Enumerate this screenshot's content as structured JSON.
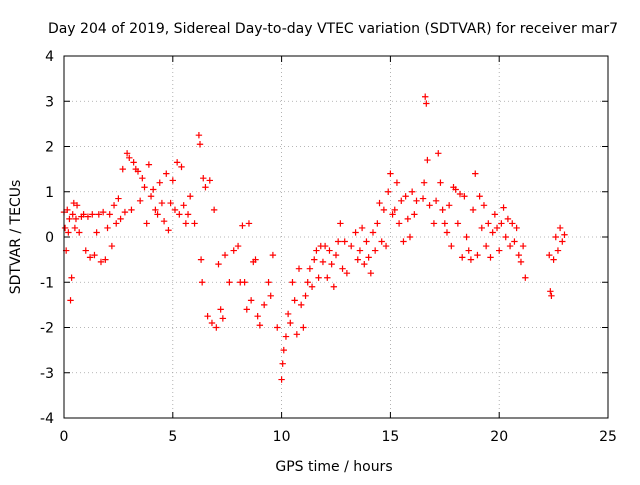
{
  "chart_data": {
    "type": "scatter",
    "title": "Day 204 of 2019, Sidereal Day-to-day VTEC variation (SDTVAR) for receiver mar7",
    "xlabel": "GPS time / hours",
    "ylabel": "SDTVAR / TECUs",
    "xlim": [
      0,
      25
    ],
    "ylim": [
      -4,
      4
    ],
    "xticks": [
      "0",
      "5",
      "10",
      "15",
      "20",
      "25"
    ],
    "yticks": [
      "-4",
      "-3",
      "-2",
      "-1",
      "0",
      "1",
      "2",
      "3",
      "4"
    ],
    "grid": true,
    "marker": "+",
    "color": "#ff0000",
    "series": [
      {
        "name": "SDTVAR",
        "points": [
          [
            0.0,
            0.55
          ],
          [
            0.05,
            0.2
          ],
          [
            0.1,
            -0.3
          ],
          [
            0.15,
            0.6
          ],
          [
            0.2,
            0.1
          ],
          [
            0.25,
            0.4
          ],
          [
            0.3,
            -1.4
          ],
          [
            0.35,
            -0.9
          ],
          [
            0.4,
            0.5
          ],
          [
            0.45,
            0.75
          ],
          [
            0.5,
            0.2
          ],
          [
            0.55,
            0.4
          ],
          [
            0.6,
            0.7
          ],
          [
            0.7,
            0.1
          ],
          [
            0.8,
            0.45
          ],
          [
            0.9,
            0.5
          ],
          [
            1.0,
            -0.3
          ],
          [
            1.1,
            0.45
          ],
          [
            1.2,
            -0.45
          ],
          [
            1.3,
            0.5
          ],
          [
            1.4,
            -0.4
          ],
          [
            1.5,
            0.1
          ],
          [
            1.6,
            0.5
          ],
          [
            1.7,
            -0.55
          ],
          [
            1.8,
            0.55
          ],
          [
            1.9,
            -0.5
          ],
          [
            2.0,
            0.2
          ],
          [
            2.1,
            0.5
          ],
          [
            2.2,
            -0.2
          ],
          [
            2.3,
            0.7
          ],
          [
            2.4,
            0.3
          ],
          [
            2.5,
            0.85
          ],
          [
            2.6,
            0.4
          ],
          [
            2.7,
            1.5
          ],
          [
            2.8,
            0.55
          ],
          [
            2.9,
            1.85
          ],
          [
            3.0,
            1.75
          ],
          [
            3.1,
            0.6
          ],
          [
            3.2,
            1.65
          ],
          [
            3.3,
            1.5
          ],
          [
            3.4,
            1.45
          ],
          [
            3.5,
            0.8
          ],
          [
            3.6,
            1.3
          ],
          [
            3.7,
            1.1
          ],
          [
            3.8,
            0.3
          ],
          [
            3.9,
            1.6
          ],
          [
            4.0,
            0.9
          ],
          [
            4.1,
            1.05
          ],
          [
            4.2,
            0.6
          ],
          [
            4.3,
            0.5
          ],
          [
            4.4,
            1.2
          ],
          [
            4.5,
            0.75
          ],
          [
            4.6,
            0.35
          ],
          [
            4.7,
            1.4
          ],
          [
            4.8,
            0.15
          ],
          [
            4.9,
            0.75
          ],
          [
            5.0,
            1.25
          ],
          [
            5.1,
            0.6
          ],
          [
            5.2,
            1.65
          ],
          [
            5.3,
            0.5
          ],
          [
            5.4,
            1.55
          ],
          [
            5.5,
            0.7
          ],
          [
            5.6,
            0.3
          ],
          [
            5.7,
            0.5
          ],
          [
            5.8,
            0.9
          ],
          [
            6.0,
            0.3
          ],
          [
            6.2,
            2.25
          ],
          [
            6.25,
            2.05
          ],
          [
            6.3,
            -0.5
          ],
          [
            6.35,
            -1.0
          ],
          [
            6.4,
            1.3
          ],
          [
            6.5,
            1.1
          ],
          [
            6.6,
            -1.75
          ],
          [
            6.7,
            1.25
          ],
          [
            6.8,
            -1.9
          ],
          [
            6.9,
            0.6
          ],
          [
            7.0,
            -2.0
          ],
          [
            7.1,
            -0.6
          ],
          [
            7.2,
            -1.6
          ],
          [
            7.3,
            -1.8
          ],
          [
            7.4,
            -0.4
          ],
          [
            7.6,
            -1.0
          ],
          [
            7.8,
            -0.3
          ],
          [
            8.0,
            -0.2
          ],
          [
            8.1,
            -1.0
          ],
          [
            8.2,
            0.25
          ],
          [
            8.3,
            -1.0
          ],
          [
            8.4,
            -1.6
          ],
          [
            8.5,
            0.3
          ],
          [
            8.6,
            -1.4
          ],
          [
            8.7,
            -0.55
          ],
          [
            8.8,
            -0.5
          ],
          [
            8.9,
            -1.75
          ],
          [
            9.0,
            -1.95
          ],
          [
            9.2,
            -1.5
          ],
          [
            9.4,
            -1.0
          ],
          [
            9.5,
            -1.3
          ],
          [
            9.6,
            -0.4
          ],
          [
            9.8,
            -2.0
          ],
          [
            10.0,
            -3.15
          ],
          [
            10.05,
            -2.8
          ],
          [
            10.1,
            -2.5
          ],
          [
            10.2,
            -2.2
          ],
          [
            10.3,
            -1.7
          ],
          [
            10.4,
            -1.9
          ],
          [
            10.5,
            -1.0
          ],
          [
            10.6,
            -1.4
          ],
          [
            10.7,
            -2.15
          ],
          [
            10.8,
            -0.7
          ],
          [
            10.9,
            -1.5
          ],
          [
            11.0,
            -2.0
          ],
          [
            11.1,
            -1.3
          ],
          [
            11.2,
            -1.0
          ],
          [
            11.3,
            -0.7
          ],
          [
            11.4,
            -1.1
          ],
          [
            11.5,
            -0.5
          ],
          [
            11.6,
            -0.3
          ],
          [
            11.7,
            -0.9
          ],
          [
            11.8,
            -0.2
          ],
          [
            11.9,
            -0.55
          ],
          [
            12.0,
            -0.2
          ],
          [
            12.1,
            -0.9
          ],
          [
            12.2,
            -0.3
          ],
          [
            12.3,
            -0.6
          ],
          [
            12.4,
            -1.1
          ],
          [
            12.5,
            -0.4
          ],
          [
            12.6,
            -0.1
          ],
          [
            12.7,
            0.3
          ],
          [
            12.8,
            -0.7
          ],
          [
            12.9,
            -0.1
          ],
          [
            13.0,
            -0.8
          ],
          [
            13.2,
            -0.2
          ],
          [
            13.4,
            0.1
          ],
          [
            13.5,
            -0.5
          ],
          [
            13.6,
            -0.3
          ],
          [
            13.7,
            0.2
          ],
          [
            13.8,
            -0.6
          ],
          [
            13.9,
            -0.1
          ],
          [
            14.0,
            -0.45
          ],
          [
            14.1,
            -0.8
          ],
          [
            14.2,
            0.1
          ],
          [
            14.3,
            -0.3
          ],
          [
            14.4,
            0.3
          ],
          [
            14.5,
            0.75
          ],
          [
            14.6,
            -0.1
          ],
          [
            14.7,
            0.6
          ],
          [
            14.8,
            -0.2
          ],
          [
            14.9,
            1.0
          ],
          [
            15.0,
            1.4
          ],
          [
            15.1,
            0.5
          ],
          [
            15.2,
            0.6
          ],
          [
            15.3,
            1.2
          ],
          [
            15.4,
            0.3
          ],
          [
            15.5,
            0.8
          ],
          [
            15.6,
            -0.1
          ],
          [
            15.7,
            0.9
          ],
          [
            15.8,
            0.4
          ],
          [
            15.9,
            0.0
          ],
          [
            16.0,
            1.0
          ],
          [
            16.1,
            0.5
          ],
          [
            16.2,
            0.8
          ],
          [
            16.5,
            0.85
          ],
          [
            16.55,
            1.2
          ],
          [
            16.6,
            3.1
          ],
          [
            16.65,
            2.95
          ],
          [
            16.7,
            1.7
          ],
          [
            16.8,
            0.7
          ],
          [
            17.0,
            0.3
          ],
          [
            17.1,
            0.8
          ],
          [
            17.2,
            1.85
          ],
          [
            17.3,
            1.2
          ],
          [
            17.4,
            0.6
          ],
          [
            17.5,
            0.3
          ],
          [
            17.6,
            0.1
          ],
          [
            17.7,
            0.7
          ],
          [
            17.8,
            -0.2
          ],
          [
            17.9,
            1.1
          ],
          [
            18.0,
            1.05
          ],
          [
            18.1,
            0.3
          ],
          [
            18.2,
            0.95
          ],
          [
            18.3,
            -0.45
          ],
          [
            18.4,
            0.9
          ],
          [
            18.5,
            0.0
          ],
          [
            18.6,
            -0.3
          ],
          [
            18.7,
            -0.5
          ],
          [
            18.8,
            0.6
          ],
          [
            18.9,
            1.4
          ],
          [
            19.0,
            -0.4
          ],
          [
            19.1,
            0.9
          ],
          [
            19.2,
            0.2
          ],
          [
            19.3,
            0.7
          ],
          [
            19.4,
            -0.2
          ],
          [
            19.5,
            0.3
          ],
          [
            19.6,
            -0.45
          ],
          [
            19.7,
            0.1
          ],
          [
            19.8,
            0.5
          ],
          [
            19.9,
            0.2
          ],
          [
            20.0,
            -0.3
          ],
          [
            20.1,
            0.3
          ],
          [
            20.2,
            0.65
          ],
          [
            20.3,
            0.0
          ],
          [
            20.4,
            0.4
          ],
          [
            20.5,
            -0.2
          ],
          [
            20.6,
            0.3
          ],
          [
            20.7,
            -0.1
          ],
          [
            20.8,
            0.2
          ],
          [
            20.9,
            -0.4
          ],
          [
            21.0,
            -0.55
          ],
          [
            21.1,
            -0.2
          ],
          [
            21.2,
            -0.9
          ],
          [
            22.3,
            -0.4
          ],
          [
            22.35,
            -1.2
          ],
          [
            22.4,
            -1.3
          ],
          [
            22.5,
            -0.5
          ],
          [
            22.6,
            0.0
          ],
          [
            22.7,
            -0.3
          ],
          [
            22.8,
            0.2
          ],
          [
            22.9,
            -0.1
          ],
          [
            23.0,
            0.05
          ]
        ]
      }
    ]
  }
}
